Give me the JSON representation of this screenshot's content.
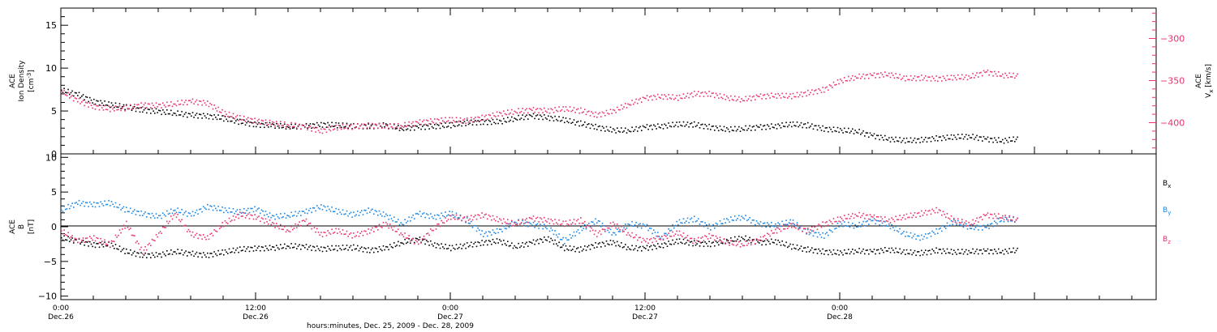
{
  "figure": {
    "x_axis_title": "hours:minutes, Dec. 25, 2009 - Dec. 28, 2009",
    "x_tick_labels": [
      {
        "time": "0:00",
        "date": "Dec.26"
      },
      {
        "time": "12:00",
        "date": "Dec.26"
      },
      {
        "time": "0:00",
        "date": "Dec.27"
      },
      {
        "time": "12:00",
        "date": "Dec.27"
      },
      {
        "time": "0:00",
        "date": "Dec.28"
      }
    ]
  },
  "colors": {
    "black": "#000000",
    "red": "#e8336b",
    "blue": "#1a87e6",
    "axis": "#000000"
  },
  "chart_data": [
    {
      "type": "scatter",
      "panel": "top",
      "ylabel_left": [
        "ACE",
        "Ion Density",
        "[cm^-3]"
      ],
      "ylabel_right": [
        "ACE",
        "Vx",
        "[km/s]"
      ],
      "ylim_left": [
        0,
        17
      ],
      "yticks_left": [
        0,
        5,
        10,
        15
      ],
      "ylim_right": [
        -264,
        -437
      ],
      "yticks_right": [
        -300,
        -350,
        -400
      ],
      "xlim_hours": [
        0,
        67.5
      ],
      "grid": false,
      "series": [
        {
          "color": "black",
          "axis": "left",
          "x": [
            0,
            1,
            2,
            3,
            4,
            5,
            6,
            7,
            8,
            9,
            10,
            11,
            12,
            13,
            14,
            15,
            16,
            17,
            18,
            19,
            20,
            21,
            22,
            23,
            24,
            25,
            26,
            27,
            28,
            29,
            30,
            31,
            32,
            33,
            34,
            35,
            36,
            37,
            38,
            39,
            40,
            41,
            42,
            43,
            44,
            45,
            46,
            47,
            48,
            49,
            50,
            51,
            52,
            53,
            54,
            55,
            56,
            57,
            58,
            59
          ],
          "y": [
            7.5,
            7.0,
            6.2,
            5.8,
            5.5,
            5.2,
            5.0,
            4.8,
            4.6,
            4.5,
            4.2,
            3.8,
            3.5,
            3.4,
            3.2,
            3.3,
            3.5,
            3.4,
            3.3,
            3.3,
            3.4,
            3.0,
            3.2,
            3.3,
            3.4,
            3.7,
            3.8,
            3.8,
            4.2,
            4.5,
            4.3,
            4.0,
            3.6,
            3.2,
            2.8,
            2.8,
            3.2,
            3.3,
            3.5,
            3.5,
            3.2,
            2.9,
            3.0,
            3.2,
            3.3,
            3.5,
            3.4,
            3.0,
            2.8,
            2.7,
            2.2,
            1.8,
            1.6,
            1.7,
            1.9,
            2.0,
            2.1,
            1.8,
            1.6,
            1.8
          ]
        },
        {
          "color": "red",
          "axis": "right",
          "x": [
            0,
            1,
            2,
            3,
            4,
            5,
            6,
            7,
            8,
            9,
            10,
            11,
            12,
            13,
            14,
            15,
            16,
            17,
            18,
            19,
            20,
            21,
            22,
            23,
            24,
            25,
            26,
            27,
            28,
            29,
            30,
            31,
            32,
            33,
            34,
            35,
            36,
            37,
            38,
            39,
            40,
            41,
            42,
            43,
            44,
            45,
            46,
            47,
            48,
            49,
            50,
            51,
            52,
            53,
            54,
            55,
            56,
            57,
            58,
            59
          ],
          "y": [
            -362,
            -373,
            -380,
            -383,
            -382,
            -378,
            -379,
            -377,
            -374,
            -376,
            -388,
            -394,
            -397,
            -400,
            -402,
            -404,
            -409,
            -405,
            -404,
            -402,
            -404,
            -403,
            -399,
            -397,
            -396,
            -397,
            -393,
            -389,
            -386,
            -384,
            -385,
            -383,
            -385,
            -390,
            -386,
            -377,
            -370,
            -368,
            -370,
            -365,
            -365,
            -370,
            -372,
            -368,
            -367,
            -368,
            -364,
            -360,
            -350,
            -345,
            -343,
            -342,
            -347,
            -346,
            -347,
            -346,
            -345,
            -339,
            -343,
            -344
          ]
        }
      ]
    },
    {
      "type": "scatter",
      "panel": "bottom",
      "ylabel_left": [
        "ACE",
        "B",
        "[nT]"
      ],
      "ylim": [
        -10.5,
        10.5
      ],
      "yticks": [
        -10,
        -5,
        0,
        5,
        10
      ],
      "xlim_hours": [
        0,
        67.5
      ],
      "zero_line": true,
      "grid": false,
      "legend_position": "right",
      "series": [
        {
          "name": "Bx",
          "color": "black",
          "x": [
            0,
            1,
            2,
            3,
            4,
            5,
            6,
            7,
            8,
            9,
            10,
            11,
            12,
            13,
            14,
            15,
            16,
            17,
            18,
            19,
            20,
            21,
            22,
            23,
            24,
            25,
            26,
            27,
            28,
            29,
            30,
            31,
            32,
            33,
            34,
            35,
            36,
            37,
            38,
            39,
            40,
            41,
            42,
            43,
            44,
            45,
            46,
            47,
            48,
            49,
            50,
            51,
            52,
            53,
            54,
            55,
            56,
            57,
            58,
            59
          ],
          "y": [
            -1.5,
            -2.0,
            -2.5,
            -2.5,
            -3.5,
            -4.0,
            -4.0,
            -3.5,
            -3.8,
            -4.0,
            -3.6,
            -3.2,
            -3.0,
            -3.0,
            -2.7,
            -2.8,
            -3.1,
            -3.0,
            -2.9,
            -3.3,
            -3.0,
            -2.2,
            -1.7,
            -2.5,
            -3.0,
            -2.6,
            -2.2,
            -2.0,
            -2.8,
            -2.2,
            -1.6,
            -3.0,
            -3.2,
            -2.5,
            -2.2,
            -3.0,
            -3.0,
            -2.6,
            -2.0,
            -2.3,
            -2.4,
            -2.0,
            -1.5,
            -2.2,
            -2.0,
            -2.8,
            -3.2,
            -3.5,
            -3.7,
            -3.4,
            -3.5,
            -3.2,
            -3.6,
            -3.7,
            -3.3,
            -3.6,
            -3.5,
            -3.4,
            -3.5,
            -3.3
          ]
        },
        {
          "name": "By",
          "color": "blue",
          "x": [
            0,
            1,
            2,
            3,
            4,
            5,
            6,
            7,
            8,
            9,
            10,
            11,
            12,
            13,
            14,
            15,
            16,
            17,
            18,
            19,
            20,
            21,
            22,
            23,
            24,
            25,
            26,
            27,
            28,
            29,
            30,
            31,
            32,
            33,
            34,
            35,
            36,
            37,
            38,
            39,
            40,
            41,
            42,
            43,
            44,
            45,
            46,
            47,
            48,
            49,
            50,
            51,
            52,
            53,
            54,
            55,
            56,
            57,
            58,
            59
          ],
          "y": [
            2.5,
            3.5,
            3.3,
            3.5,
            2.5,
            2.0,
            1.5,
            2.5,
            1.8,
            3.0,
            2.5,
            2.2,
            2.7,
            1.5,
            1.7,
            2.2,
            3.0,
            2.3,
            1.8,
            2.5,
            1.7,
            0.5,
            2.0,
            1.5,
            2.0,
            1.0,
            -1.0,
            -0.5,
            0.8,
            0.4,
            0.0,
            -2.0,
            -0.3,
            1.0,
            -1.0,
            0.5,
            0.2,
            -1.5,
            0.7,
            1.2,
            0.0,
            1.0,
            1.5,
            0.5,
            0.3,
            0.8,
            -0.7,
            -1.2,
            0.5,
            0.2,
            1.0,
            0.3,
            -1.0,
            -1.5,
            -0.5,
            0.8,
            0.0,
            0.0,
            1.2,
            1.0
          ]
        },
        {
          "name": "Bz",
          "color": "red",
          "x": [
            0,
            1,
            2,
            3,
            4,
            5,
            6,
            7,
            8,
            9,
            10,
            11,
            12,
            13,
            14,
            15,
            16,
            17,
            18,
            19,
            20,
            21,
            22,
            23,
            24,
            25,
            26,
            27,
            28,
            29,
            30,
            31,
            32,
            33,
            34,
            35,
            36,
            37,
            38,
            39,
            40,
            41,
            42,
            43,
            44,
            45,
            46,
            47,
            48,
            49,
            50,
            51,
            52,
            53,
            54,
            55,
            56,
            57,
            58,
            59
          ],
          "y": [
            -0.5,
            -2.0,
            -1.5,
            -2.5,
            0.5,
            -3.5,
            -1.0,
            2.0,
            -1.0,
            -1.5,
            0.5,
            1.8,
            1.5,
            0.5,
            -0.5,
            1.0,
            -1.0,
            -0.5,
            -1.2,
            -0.5,
            0.5,
            -1.0,
            -2.3,
            0.0,
            1.5,
            1.2,
            1.8,
            1.0,
            0.5,
            1.3,
            1.0,
            0.5,
            1.0,
            -1.0,
            0.5,
            -1.0,
            -2.0,
            -1.5,
            -0.8,
            -2.0,
            -1.2,
            -2.2,
            -2.5,
            -1.8,
            -0.5,
            0.3,
            -0.5,
            0.5,
            1.2,
            1.8,
            1.5,
            1.0,
            1.5,
            2.0,
            2.5,
            1.0,
            0.5,
            1.8,
            1.5,
            1.0
          ]
        }
      ]
    }
  ]
}
